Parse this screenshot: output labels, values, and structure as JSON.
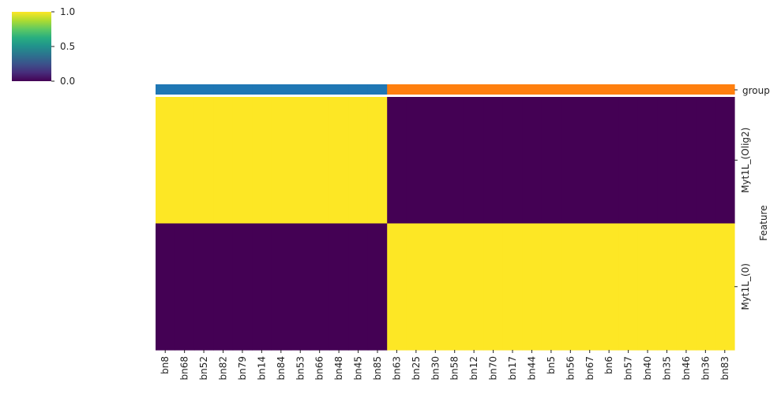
{
  "chart_data": {
    "type": "heatmap",
    "colormap": "viridis",
    "colorbar": {
      "min": 0.0,
      "max": 1.0,
      "ticks": [
        "0.0",
        "0.5",
        "1.0"
      ]
    },
    "group_bar_label": "group",
    "ylabel": "Feature",
    "rows": [
      "Myt1L_(Olig2)",
      "Myt1L_(0)"
    ],
    "columns": [
      "bn8",
      "bn68",
      "bn52",
      "bn82",
      "bn79",
      "bn14",
      "bn84",
      "bn53",
      "bn66",
      "bn48",
      "bn45",
      "bn85",
      "bn63",
      "bn25",
      "bn30",
      "bn58",
      "bn12",
      "bn70",
      "bn17",
      "bn44",
      "bn5",
      "bn56",
      "bn67",
      "bn6",
      "bn57",
      "bn40",
      "bn35",
      "bn46",
      "bn36",
      "bn83"
    ],
    "groups": [
      {
        "color": "#1f77b4",
        "count": 12
      },
      {
        "color": "#ff7f0e",
        "count": 18
      }
    ],
    "values": [
      [
        1,
        1,
        1,
        1,
        1,
        1,
        1,
        1,
        1,
        1,
        1,
        1,
        0,
        0,
        0,
        0,
        0,
        0,
        0,
        0,
        0,
        0,
        0,
        0,
        0,
        0,
        0,
        0,
        0,
        0
      ],
      [
        0,
        0,
        0,
        0,
        0,
        0,
        0,
        0,
        0,
        0,
        0,
        0,
        1,
        1,
        1,
        1,
        1,
        1,
        1,
        1,
        1,
        1,
        1,
        1,
        1,
        1,
        1,
        1,
        1,
        1
      ]
    ]
  }
}
